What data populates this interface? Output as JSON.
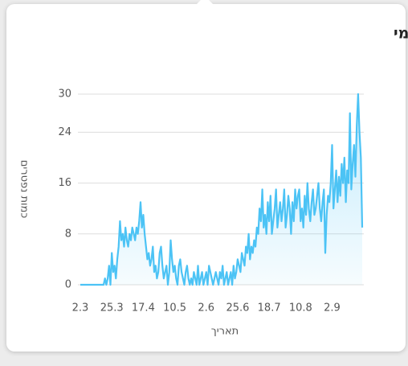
{
  "chart_data": {
    "type": "line",
    "title": "נפטרים - שינוי יומי",
    "x_label": "תאריך",
    "y_label": "כמות נפטרים",
    "categories": [
      "2.3",
      null,
      null,
      null,
      null,
      null,
      null,
      null,
      null,
      null,
      null,
      null,
      null,
      null,
      null,
      null,
      null,
      null,
      null,
      null,
      null,
      null,
      null,
      "25.3",
      null,
      null,
      null,
      null,
      null,
      null,
      null,
      null,
      null,
      null,
      null,
      null,
      null,
      null,
      null,
      null,
      null,
      null,
      null,
      null,
      null,
      null,
      "17.4",
      null,
      null,
      null,
      null,
      null,
      null,
      null,
      null,
      null,
      null,
      null,
      null,
      null,
      null,
      null,
      null,
      null,
      null,
      null,
      null,
      null,
      null,
      "10.5",
      null,
      null,
      null,
      null,
      null,
      null,
      null,
      null,
      null,
      null,
      null,
      null,
      null,
      null,
      null,
      null,
      null,
      null,
      null,
      null,
      null,
      null,
      "2.6",
      null,
      null,
      null,
      null,
      null,
      null,
      null,
      null,
      null,
      null,
      null,
      null,
      null,
      null,
      null,
      null,
      null,
      null,
      null,
      null,
      null,
      null,
      "25.6",
      null,
      null,
      null,
      null,
      null,
      null,
      null,
      null,
      null,
      null,
      null,
      null,
      null,
      null,
      null,
      null,
      null,
      null,
      null,
      null,
      null,
      null,
      "18.7",
      null,
      null,
      null,
      null,
      null,
      null,
      null,
      null,
      null,
      null,
      null,
      null,
      null,
      null,
      null,
      null,
      null,
      null,
      null,
      null,
      null,
      null,
      "10.8",
      null,
      null,
      null,
      null,
      null,
      null,
      null,
      null,
      null,
      null,
      null,
      null,
      null,
      null,
      null,
      null,
      null,
      null,
      null,
      null,
      null,
      null,
      "2.9",
      null,
      null,
      null,
      null,
      null,
      null,
      null,
      null,
      null,
      null,
      null,
      null,
      null,
      null,
      null,
      null,
      null,
      null,
      null,
      null,
      null,
      null
    ],
    "values": [
      0,
      0,
      0,
      0,
      0,
      0,
      0,
      0,
      0,
      0,
      0,
      0,
      0,
      0,
      0,
      0,
      0,
      0,
      1,
      0,
      1,
      3,
      0,
      5,
      2,
      3,
      1,
      4,
      6,
      10,
      7,
      8,
      6,
      9,
      7,
      6,
      8,
      7,
      9,
      8,
      7,
      9,
      8,
      10,
      13,
      9,
      11,
      8,
      6,
      4,
      5,
      3,
      4,
      6,
      2,
      3,
      1,
      2,
      5,
      6,
      3,
      1,
      2,
      3,
      0,
      2,
      7,
      4,
      2,
      3,
      1,
      0,
      3,
      4,
      2,
      1,
      0,
      2,
      3,
      1,
      0,
      1,
      0,
      2,
      1,
      0,
      3,
      0,
      1,
      2,
      0,
      1,
      2,
      0,
      3,
      2,
      1,
      0,
      1,
      2,
      1,
      0,
      2,
      1,
      3,
      0,
      1,
      2,
      0,
      1,
      2,
      0,
      3,
      1,
      2,
      4,
      3,
      2,
      5,
      4,
      3,
      6,
      5,
      8,
      4,
      6,
      5,
      7,
      6,
      9,
      8,
      12,
      10,
      15,
      9,
      11,
      8,
      13,
      10,
      14,
      8,
      10,
      12,
      15,
      9,
      11,
      13,
      10,
      12,
      15,
      9,
      11,
      14,
      12,
      8,
      13,
      10,
      15,
      12,
      14,
      15,
      10,
      12,
      9,
      14,
      11,
      16,
      12,
      10,
      13,
      15,
      11,
      12,
      14,
      16,
      12,
      10,
      13,
      15,
      5,
      11,
      14,
      13,
      16,
      22,
      12,
      15,
      18,
      13,
      17,
      14,
      19,
      16,
      20,
      13,
      18,
      16,
      27,
      15,
      19,
      22,
      17,
      25,
      30,
      24,
      20,
      9
    ],
    "color": "#4cc3f5",
    "area": true,
    "ylim": [
      0,
      30
    ],
    "yticks": [
      0,
      8,
      16,
      24,
      30
    ],
    "grid": true
  }
}
